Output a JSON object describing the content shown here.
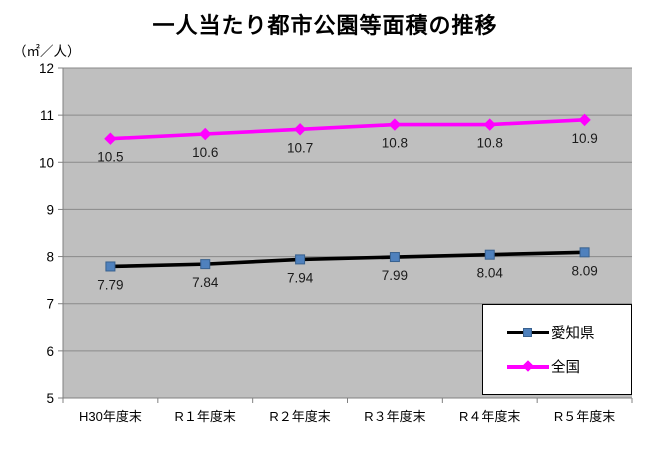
{
  "chart_data": {
    "type": "line",
    "title": "一人当たり都市公園等面積の推移",
    "unit_label": "（㎡／人）",
    "categories": [
      "H30年度末",
      "R１年度末",
      "R２年度末",
      "R３年度末",
      "R４年度末",
      "R５年度末"
    ],
    "series": [
      {
        "name": "愛知県",
        "values": [
          7.79,
          7.84,
          7.94,
          7.99,
          8.04,
          8.09
        ],
        "labels": [
          "7.79",
          "7.84",
          "7.94",
          "7.99",
          "8.04",
          "8.09"
        ],
        "line_color": "#000000",
        "marker": "square",
        "marker_fill": "#4F81BD",
        "marker_stroke": "#38618F"
      },
      {
        "name": "全国",
        "values": [
          10.5,
          10.6,
          10.7,
          10.8,
          10.8,
          10.9
        ],
        "labels": [
          "10.5",
          "10.6",
          "10.7",
          "10.8",
          "10.8",
          "10.9"
        ],
        "line_color": "#FF00FF",
        "marker": "diamond",
        "marker_fill": "#FF00FF",
        "marker_stroke": "#FF00FF"
      }
    ],
    "ylim": [
      5,
      12
    ],
    "y_ticks": [
      "12",
      "11",
      "10",
      "9",
      "8",
      "7",
      "6",
      "5"
    ],
    "grid": true,
    "legend_position": "inside-bottom-right",
    "plot_bg": "#BFBFBF",
    "grid_color": "#8A8A8A",
    "axis_color": "#808080",
    "label_color": "#1a1a1a"
  }
}
